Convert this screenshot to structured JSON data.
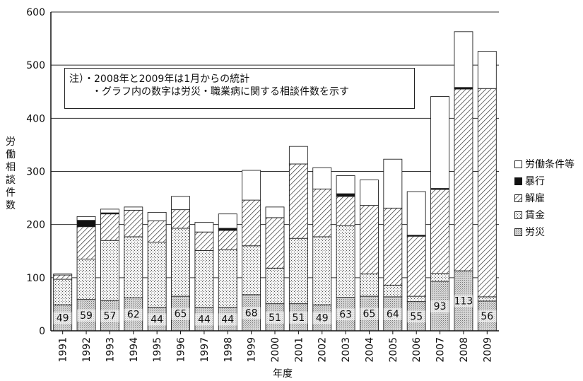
{
  "chart_data": {
    "type": "bar",
    "stacked": true,
    "categories": [
      "1991",
      "1992",
      "1993",
      "1994",
      "1995",
      "1996",
      "1997",
      "1998",
      "1999",
      "2000",
      "2001",
      "2002",
      "2003",
      "2004",
      "2005",
      "2006",
      "2007",
      "2008",
      "2009"
    ],
    "series": [
      {
        "name": "労災",
        "values": [
          49,
          59,
          57,
          62,
          44,
          65,
          44,
          44,
          68,
          51,
          51,
          49,
          63,
          65,
          64,
          55,
          93,
          113,
          56
        ]
      },
      {
        "name": "賃金",
        "values": [
          48,
          76,
          113,
          115,
          123,
          128,
          107,
          109,
          92,
          67,
          123,
          128,
          135,
          42,
          22,
          10,
          15,
          0,
          8
        ]
      },
      {
        "name": "解雇",
        "values": [
          8,
          61,
          50,
          50,
          40,
          35,
          35,
          36,
          86,
          95,
          140,
          90,
          55,
          129,
          145,
          113,
          158,
          342,
          392
        ]
      },
      {
        "name": "暴行",
        "values": [
          0,
          12,
          2,
          0,
          0,
          0,
          0,
          4,
          0,
          0,
          0,
          0,
          5,
          0,
          0,
          2,
          2,
          3,
          0
        ]
      },
      {
        "name": "労働条件等",
        "values": [
          2,
          7,
          7,
          6,
          16,
          25,
          18,
          27,
          56,
          20,
          33,
          40,
          34,
          48,
          92,
          82,
          173,
          105,
          70
        ]
      }
    ],
    "labels": [
      49,
      59,
      57,
      62,
      44,
      65,
      44,
      44,
      68,
      51,
      51,
      49,
      63,
      65,
      64,
      55,
      93,
      113,
      56
    ],
    "ylim": [
      0,
      600
    ],
    "yticks": [
      0,
      100,
      200,
      300,
      400,
      500,
      600
    ],
    "xlabel": "年度",
    "ylabel": "労働相談件数",
    "note": {
      "line1": "注）・2008年と2009年は1月からの統計",
      "line2": "・グラフ内の数字は労災・職業病に関する相談件数を示す"
    },
    "legend": [
      "労働条件等",
      "暴行",
      "解雇",
      "賃金",
      "労災"
    ],
    "legend_position": "right",
    "grid": true
  }
}
